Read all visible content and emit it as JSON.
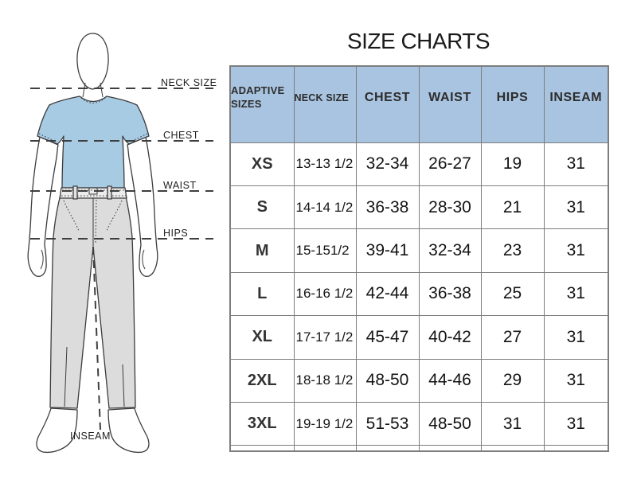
{
  "title": "SIZE CHARTS",
  "figure": {
    "labels": {
      "neck": "NECK SIZE",
      "chest": "CHEST",
      "waist": "WAIST",
      "hips": "HIPS",
      "inseam": "INSEAM"
    },
    "colors": {
      "shirt": "#a8cbe4",
      "pants": "#dcdcdc",
      "waistband": "#ececec",
      "outline": "#3c3c3c",
      "skin": "#ffffff"
    }
  },
  "table_style": {
    "header_bg": "#a9c4e0",
    "border_color": "#7d7d7d"
  },
  "chart_data": {
    "type": "table",
    "title": "SIZE CHARTS",
    "columns": [
      "ADAPTIVE SIZES",
      "NECK SIZE",
      "CHEST",
      "WAIST",
      "HIPS",
      "INSEAM"
    ],
    "rows": [
      [
        "XS",
        "13-13 1/2",
        "32-34",
        "26-27",
        "19",
        "31"
      ],
      [
        "S",
        "14-14 1/2",
        "36-38",
        "28-30",
        "21",
        "31"
      ],
      [
        "M",
        "15-151/2",
        "39-41",
        "32-34",
        "23",
        "31"
      ],
      [
        "L",
        "16-16 1/2",
        "42-44",
        "36-38",
        "25",
        "31"
      ],
      [
        "XL",
        "17-17 1/2",
        "45-47",
        "40-42",
        "27",
        "31"
      ],
      [
        "2XL",
        "18-18 1/2",
        "48-50",
        "44-46",
        "29",
        "31"
      ],
      [
        "3XL",
        "19-19 1/2",
        "51-53",
        "48-50",
        "31",
        "31"
      ],
      [
        "",
        "",
        "",
        "",
        "",
        ""
      ]
    ]
  }
}
